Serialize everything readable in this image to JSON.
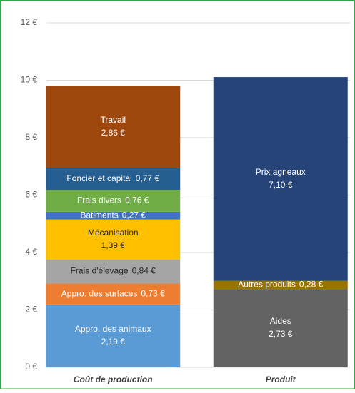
{
  "chart_data": {
    "type": "stacked_bar",
    "categories": [
      "Coût de production",
      "Produit"
    ],
    "ylim": [
      0,
      12
    ],
    "yticks": [
      {
        "value": 0,
        "label": "0 €"
      },
      {
        "value": 2,
        "label": "2 €"
      },
      {
        "value": 4,
        "label": "4 €"
      },
      {
        "value": 6,
        "label": "6 €"
      },
      {
        "value": 8,
        "label": "8 €"
      },
      {
        "value": 10,
        "label": "10 €"
      },
      {
        "value": 12,
        "label": "12 €"
      }
    ],
    "grid": true,
    "series": [
      {
        "name": "Appro. des animaux",
        "color": "#5b9bd5",
        "values": [
          2.19,
          null
        ],
        "value_labels": [
          "2,19 €",
          null
        ]
      },
      {
        "name": "Appro. des surfaces",
        "color": "#ed7d31",
        "values": [
          0.73,
          null
        ],
        "value_labels": [
          "0,73 €",
          null
        ]
      },
      {
        "name": "Frais d'élevage",
        "color": "#a5a5a5",
        "values": [
          0.84,
          null
        ],
        "value_labels": [
          "0,84 €",
          null
        ]
      },
      {
        "name": "Mécanisation",
        "color": "#ffc000",
        "values": [
          1.39,
          null
        ],
        "value_labels": [
          "1,39 €",
          null
        ]
      },
      {
        "name": "Batiments",
        "color": "#4472c4",
        "values": [
          0.27,
          null
        ],
        "value_labels": [
          "0,27 €",
          null
        ]
      },
      {
        "name": "Frais divers",
        "color": "#70ad47",
        "values": [
          0.76,
          null
        ],
        "value_labels": [
          "0,76 €",
          null
        ]
      },
      {
        "name": "Foncier et capital",
        "color": "#255e91",
        "values": [
          0.77,
          null
        ],
        "value_labels": [
          "0,77 €",
          null
        ]
      },
      {
        "name": "Travail",
        "color": "#9e480e",
        "values": [
          2.86,
          null
        ],
        "value_labels": [
          "2,86 €",
          null
        ]
      },
      {
        "name": "Aides",
        "color": "#636363",
        "values": [
          null,
          2.73
        ],
        "value_labels": [
          null,
          "2,73 €"
        ]
      },
      {
        "name": "Autres produits",
        "color": "#997300",
        "values": [
          null,
          0.28
        ],
        "value_labels": [
          null,
          "0,28 €"
        ]
      },
      {
        "name": "Prix agneaux",
        "color": "#264478",
        "values": [
          null,
          7.1
        ],
        "value_labels": [
          null,
          "7,10 €"
        ]
      }
    ]
  }
}
